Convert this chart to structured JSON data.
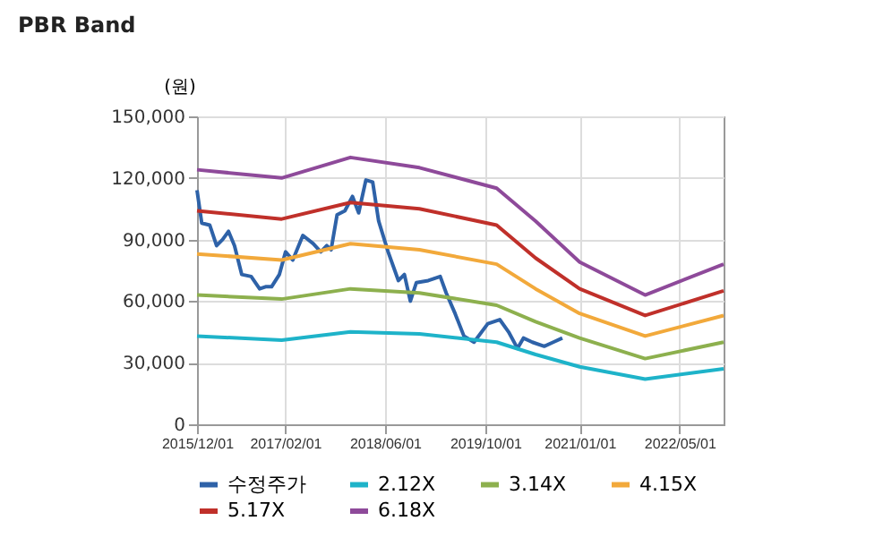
{
  "chart_data": {
    "type": "line",
    "title": "PBR Band",
    "ylabel": "(원)",
    "legend": "bottom",
    "grid": true,
    "marker": "none",
    "line_style": "solid",
    "xlim": [
      "2015-12-01",
      "2022-12-01"
    ],
    "xticks": [
      {
        "value": "2015-12-01",
        "label": "2015/12/01"
      },
      {
        "value": "2017-02-01",
        "label": "2017/02/01"
      },
      {
        "value": "2018-06-01",
        "label": "2018/06/01"
      },
      {
        "value": "2019-10-01",
        "label": "2019/10/01"
      },
      {
        "value": "2021-01-01",
        "label": "2021/01/01"
      },
      {
        "value": "2022-05-01",
        "label": "2022/05/01"
      }
    ],
    "ylim": [
      0,
      150000
    ],
    "yticks": [
      {
        "value": 0,
        "label": "0"
      },
      {
        "value": 30000,
        "label": "30,000"
      },
      {
        "value": 60000,
        "label": "60,000"
      },
      {
        "value": 90000,
        "label": "90,000"
      },
      {
        "value": 120000,
        "label": "120,000"
      },
      {
        "value": 150000,
        "label": "150,000"
      }
    ],
    "series": [
      {
        "name": "수정주가",
        "color": "#2e62a8",
        "x": [
          "2015-12-01",
          "2015-12-24",
          "2016-02-01",
          "2016-03-05",
          "2016-04-03",
          "2016-05-02",
          "2016-05-31",
          "2016-07-05",
          "2016-08-20",
          "2016-09-30",
          "2016-10-29",
          "2016-11-27",
          "2017-01-04",
          "2017-02-03",
          "2017-03-10",
          "2017-04-28",
          "2017-06-17",
          "2017-07-24",
          "2017-08-22",
          "2017-09-12",
          "2017-10-11",
          "2017-11-18",
          "2017-12-25",
          "2018-01-24",
          "2018-02-28",
          "2018-04-02",
          "2018-05-01",
          "2018-06-16",
          "2018-08-05",
          "2018-09-03",
          "2018-10-02",
          "2018-10-31",
          "2018-12-28",
          "2019-02-24",
          "2019-03-25",
          "2019-05-07",
          "2019-06-19",
          "2019-08-07",
          "2019-10-13",
          "2019-12-10",
          "2020-01-22",
          "2020-03-05",
          "2020-04-03",
          "2020-05-16",
          "2020-07-13",
          "2020-08-26",
          "2020-10-09"
        ],
        "values": [
          114000,
          98000,
          97000,
          87000,
          90000,
          94000,
          87000,
          73000,
          72000,
          66000,
          67000,
          67000,
          73000,
          84000,
          80000,
          92000,
          88000,
          84000,
          87000,
          85000,
          102000,
          104000,
          111000,
          103000,
          119000,
          118000,
          99000,
          84000,
          70000,
          73000,
          60000,
          69000,
          70000,
          72000,
          64000,
          54000,
          43000,
          40000,
          49000,
          51000,
          45000,
          37000,
          42000,
          40000,
          38000,
          40000,
          42000
        ]
      },
      {
        "name": "2.12X",
        "color": "#1eb3c9",
        "x": [
          "2015-12-01",
          "2017-01-15",
          "2017-12-15",
          "2018-11-15",
          "2019-11-25",
          "2020-06-01",
          "2021-01-01",
          "2021-11-15",
          "2022-12-01"
        ],
        "values": [
          43000,
          41000,
          45000,
          44000,
          40000,
          34000,
          28000,
          22000,
          27000
        ]
      },
      {
        "name": "3.14X",
        "color": "#8db04e",
        "x": [
          "2015-12-01",
          "2017-01-15",
          "2017-12-15",
          "2018-11-15",
          "2019-11-25",
          "2020-06-01",
          "2021-01-01",
          "2021-11-15",
          "2022-12-01"
        ],
        "values": [
          63000,
          61000,
          66000,
          64000,
          58000,
          50000,
          42000,
          32000,
          40000
        ]
      },
      {
        "name": "4.15X",
        "color": "#f2a93b",
        "x": [
          "2015-12-01",
          "2017-01-15",
          "2017-12-15",
          "2018-11-15",
          "2019-11-25",
          "2020-06-01",
          "2021-01-01",
          "2021-11-15",
          "2022-12-01"
        ],
        "values": [
          83000,
          80000,
          88000,
          85000,
          78000,
          66000,
          54000,
          43000,
          53000
        ]
      },
      {
        "name": "5.17X",
        "color": "#c0302a",
        "x": [
          "2015-12-01",
          "2017-01-15",
          "2017-12-15",
          "2018-11-15",
          "2019-11-25",
          "2020-06-01",
          "2021-01-01",
          "2021-11-15",
          "2022-12-01"
        ],
        "values": [
          104000,
          100000,
          108000,
          105000,
          97000,
          81000,
          66000,
          53000,
          65000
        ]
      },
      {
        "name": "6.18X",
        "color": "#8e4a9a",
        "x": [
          "2015-12-01",
          "2017-01-15",
          "2017-12-15",
          "2018-11-15",
          "2019-11-25",
          "2020-06-01",
          "2021-01-01",
          "2021-11-15",
          "2022-12-01"
        ],
        "values": [
          124000,
          120000,
          130000,
          125000,
          115000,
          99000,
          79000,
          63000,
          78000
        ]
      }
    ]
  }
}
